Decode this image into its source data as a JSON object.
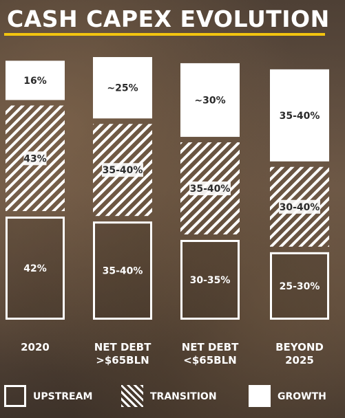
{
  "title": "CASH CAPEX EVOLUTION",
  "colors": {
    "accent": "#f2c40f",
    "growth_fill": "#ffffff",
    "outline": "#ffffff",
    "text_dark": "#2b2b2b"
  },
  "chart_data": {
    "type": "bar",
    "stacked": true,
    "title": "CASH CAPEX EVOLUTION",
    "categories": [
      [
        "2020"
      ],
      [
        "NET DEBT",
        ">$65BLN"
      ],
      [
        "NET DEBT",
        "<$65BLN"
      ],
      [
        "BEYOND",
        "2025"
      ]
    ],
    "series": [
      {
        "name": "UPSTREAM",
        "style": "outline",
        "values": [
          42,
          40,
          32.5,
          27.5
        ],
        "labels": [
          "42%",
          "35-40%",
          "30-35%",
          "25-30%"
        ]
      },
      {
        "name": "TRANSITION",
        "style": "hatched",
        "values": [
          43,
          37.5,
          37.5,
          32.5
        ],
        "labels": [
          "43%",
          "35-40%",
          "35-40%",
          "30-40%"
        ]
      },
      {
        "name": "GROWTH",
        "style": "solid",
        "values": [
          16,
          25,
          30,
          37.5
        ],
        "labels": [
          "16%",
          "~25%",
          "~30%",
          "35-40%"
        ]
      }
    ],
    "legend": [
      "UPSTREAM",
      "TRANSITION",
      "GROWTH"
    ],
    "legend_position": "bottom",
    "grid": false
  }
}
